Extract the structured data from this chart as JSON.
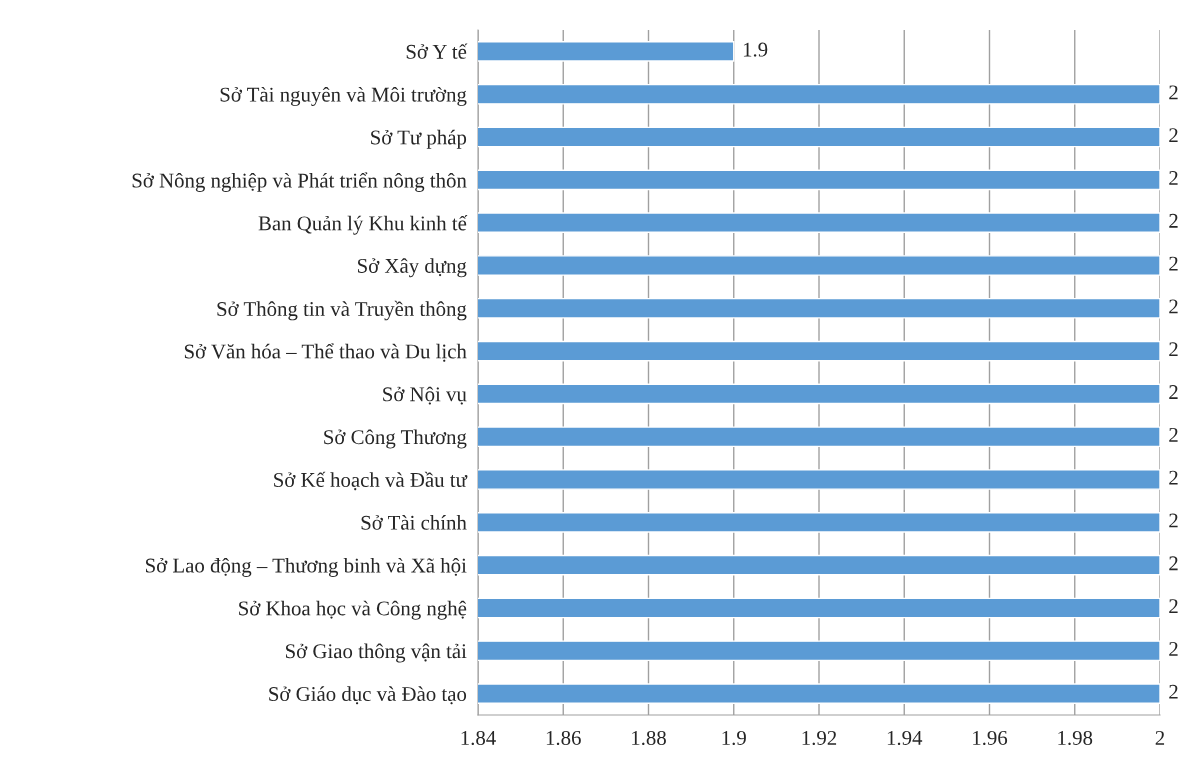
{
  "chart_data": {
    "type": "bar",
    "orientation": "horizontal",
    "categories": [
      "Sở Y tế",
      "Sở Tài nguyên và Môi trường",
      "Sở Tư pháp",
      "Sở Nông nghiệp và Phát triển nông thôn",
      "Ban Quản lý Khu kinh tế",
      "Sở Xây dựng",
      "Sở Thông tin và Truyền thông",
      "Sở Văn hóa – Thể thao và Du lịch",
      "Sở Nội vụ",
      "Sở Công Thương",
      "Sở Kế hoạch và Đầu tư",
      "Sở Tài chính",
      "Sở Lao động – Thương binh và Xã hội",
      "Sở Khoa học và Công nghệ",
      "Sở Giao thông vận tải",
      "Sở Giáo dục và Đào tạo"
    ],
    "values": [
      1.9,
      2,
      2,
      2,
      2,
      2,
      2,
      2,
      2,
      2,
      2,
      2,
      2,
      2,
      2,
      2
    ],
    "color": "#5b9bd5",
    "xlim": [
      1.84,
      2
    ],
    "xticks": [
      1.84,
      1.86,
      1.88,
      1.9,
      1.92,
      1.94,
      1.96,
      1.98,
      2
    ],
    "grid": "x",
    "data_labels": true
  }
}
